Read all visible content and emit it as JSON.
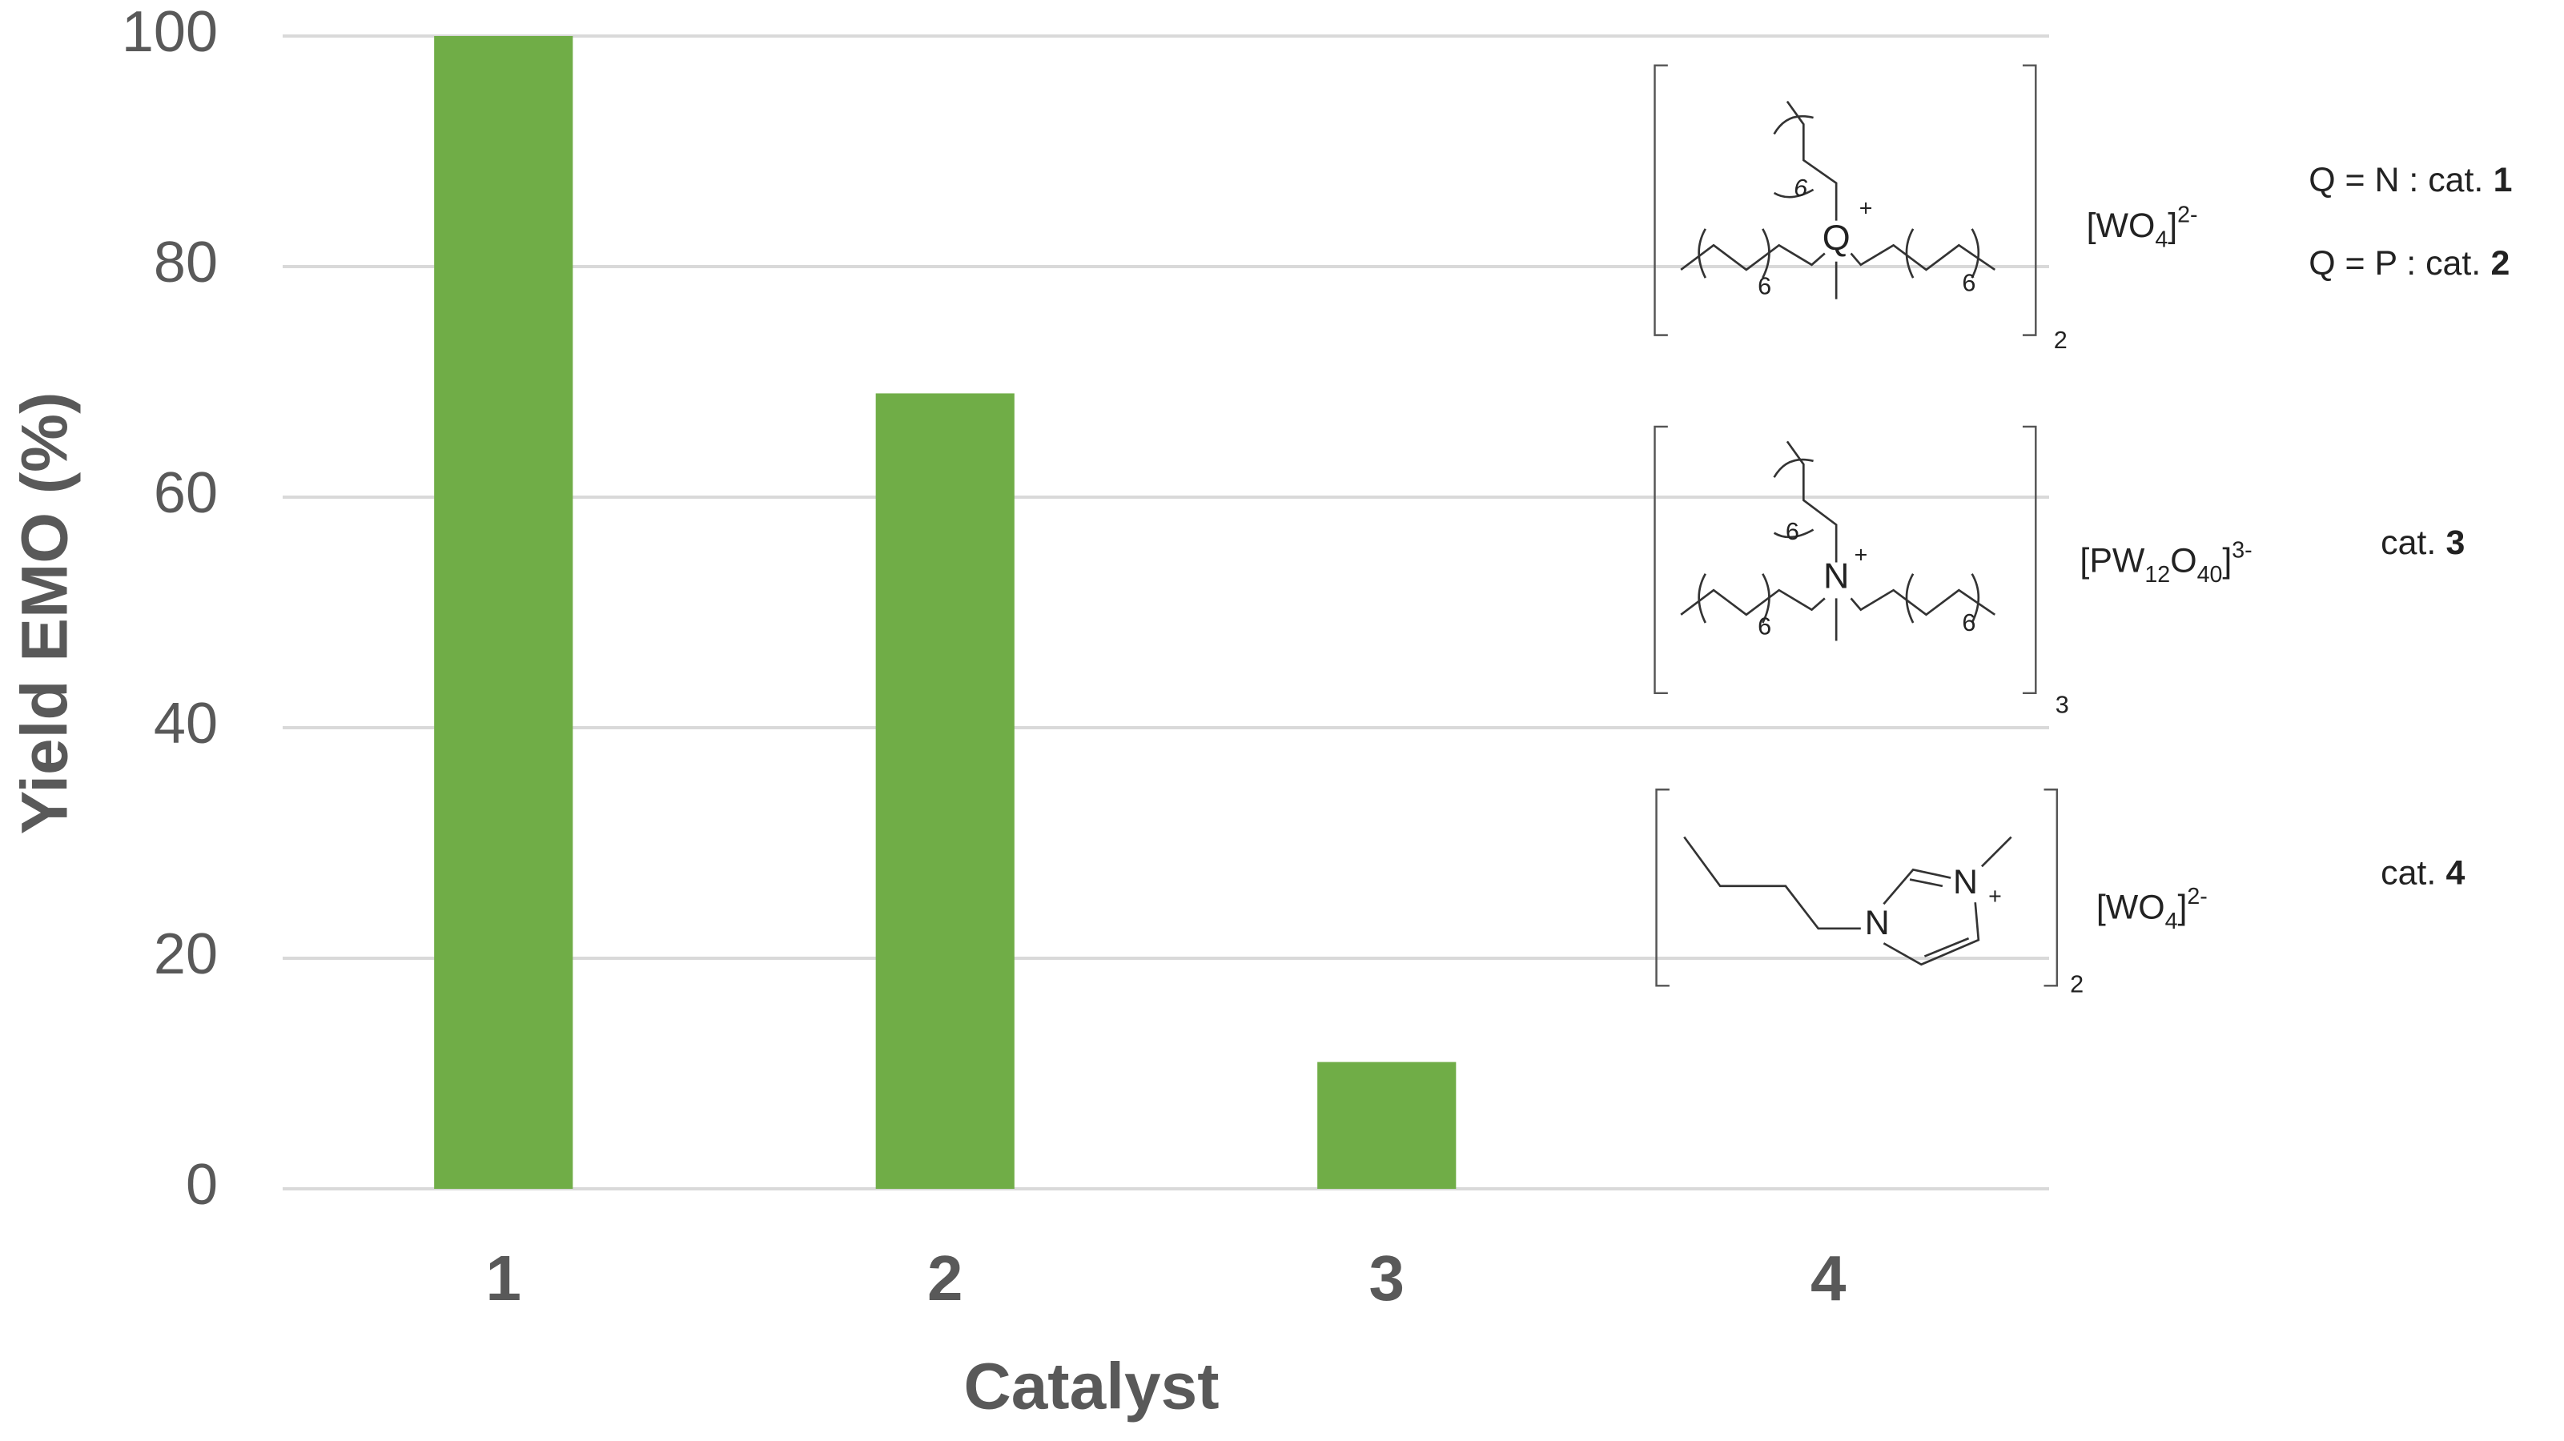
{
  "chart_data": {
    "type": "bar",
    "categories": [
      "1",
      "2",
      "3",
      "4"
    ],
    "values": [
      100,
      69,
      11,
      0
    ],
    "color": "#70ad47",
    "xlabel": "Catalyst",
    "ylabel": "Yield EMO (%)",
    "ylim": [
      0,
      100
    ],
    "yticks": [
      0,
      20,
      40,
      60,
      80,
      100
    ],
    "grid": true,
    "structures": [
      {
        "center": "Q",
        "charge": "+",
        "chain_counts": [
          "6",
          "6",
          "6"
        ],
        "anion": [
          "[WO",
          "4",
          "]",
          "2-"
        ],
        "multiplier": "2",
        "labels": [
          [
            "Q = N : cat.",
            "1"
          ],
          [
            "Q = P : cat.",
            "2"
          ]
        ]
      },
      {
        "center": "N",
        "charge": "+",
        "chain_counts": [
          "6",
          "6",
          "6"
        ],
        "anion": [
          "[PW",
          "12",
          "O",
          "40",
          "]",
          "3-"
        ],
        "multiplier": "3",
        "labels": [
          [
            "cat.",
            "3"
          ]
        ]
      },
      {
        "atoms": [
          "N",
          "N"
        ],
        "charge": "+",
        "anion": [
          "[WO",
          "4",
          "]",
          "2-"
        ],
        "multiplier": "2",
        "labels": [
          [
            "cat.",
            "4"
          ]
        ]
      }
    ]
  }
}
